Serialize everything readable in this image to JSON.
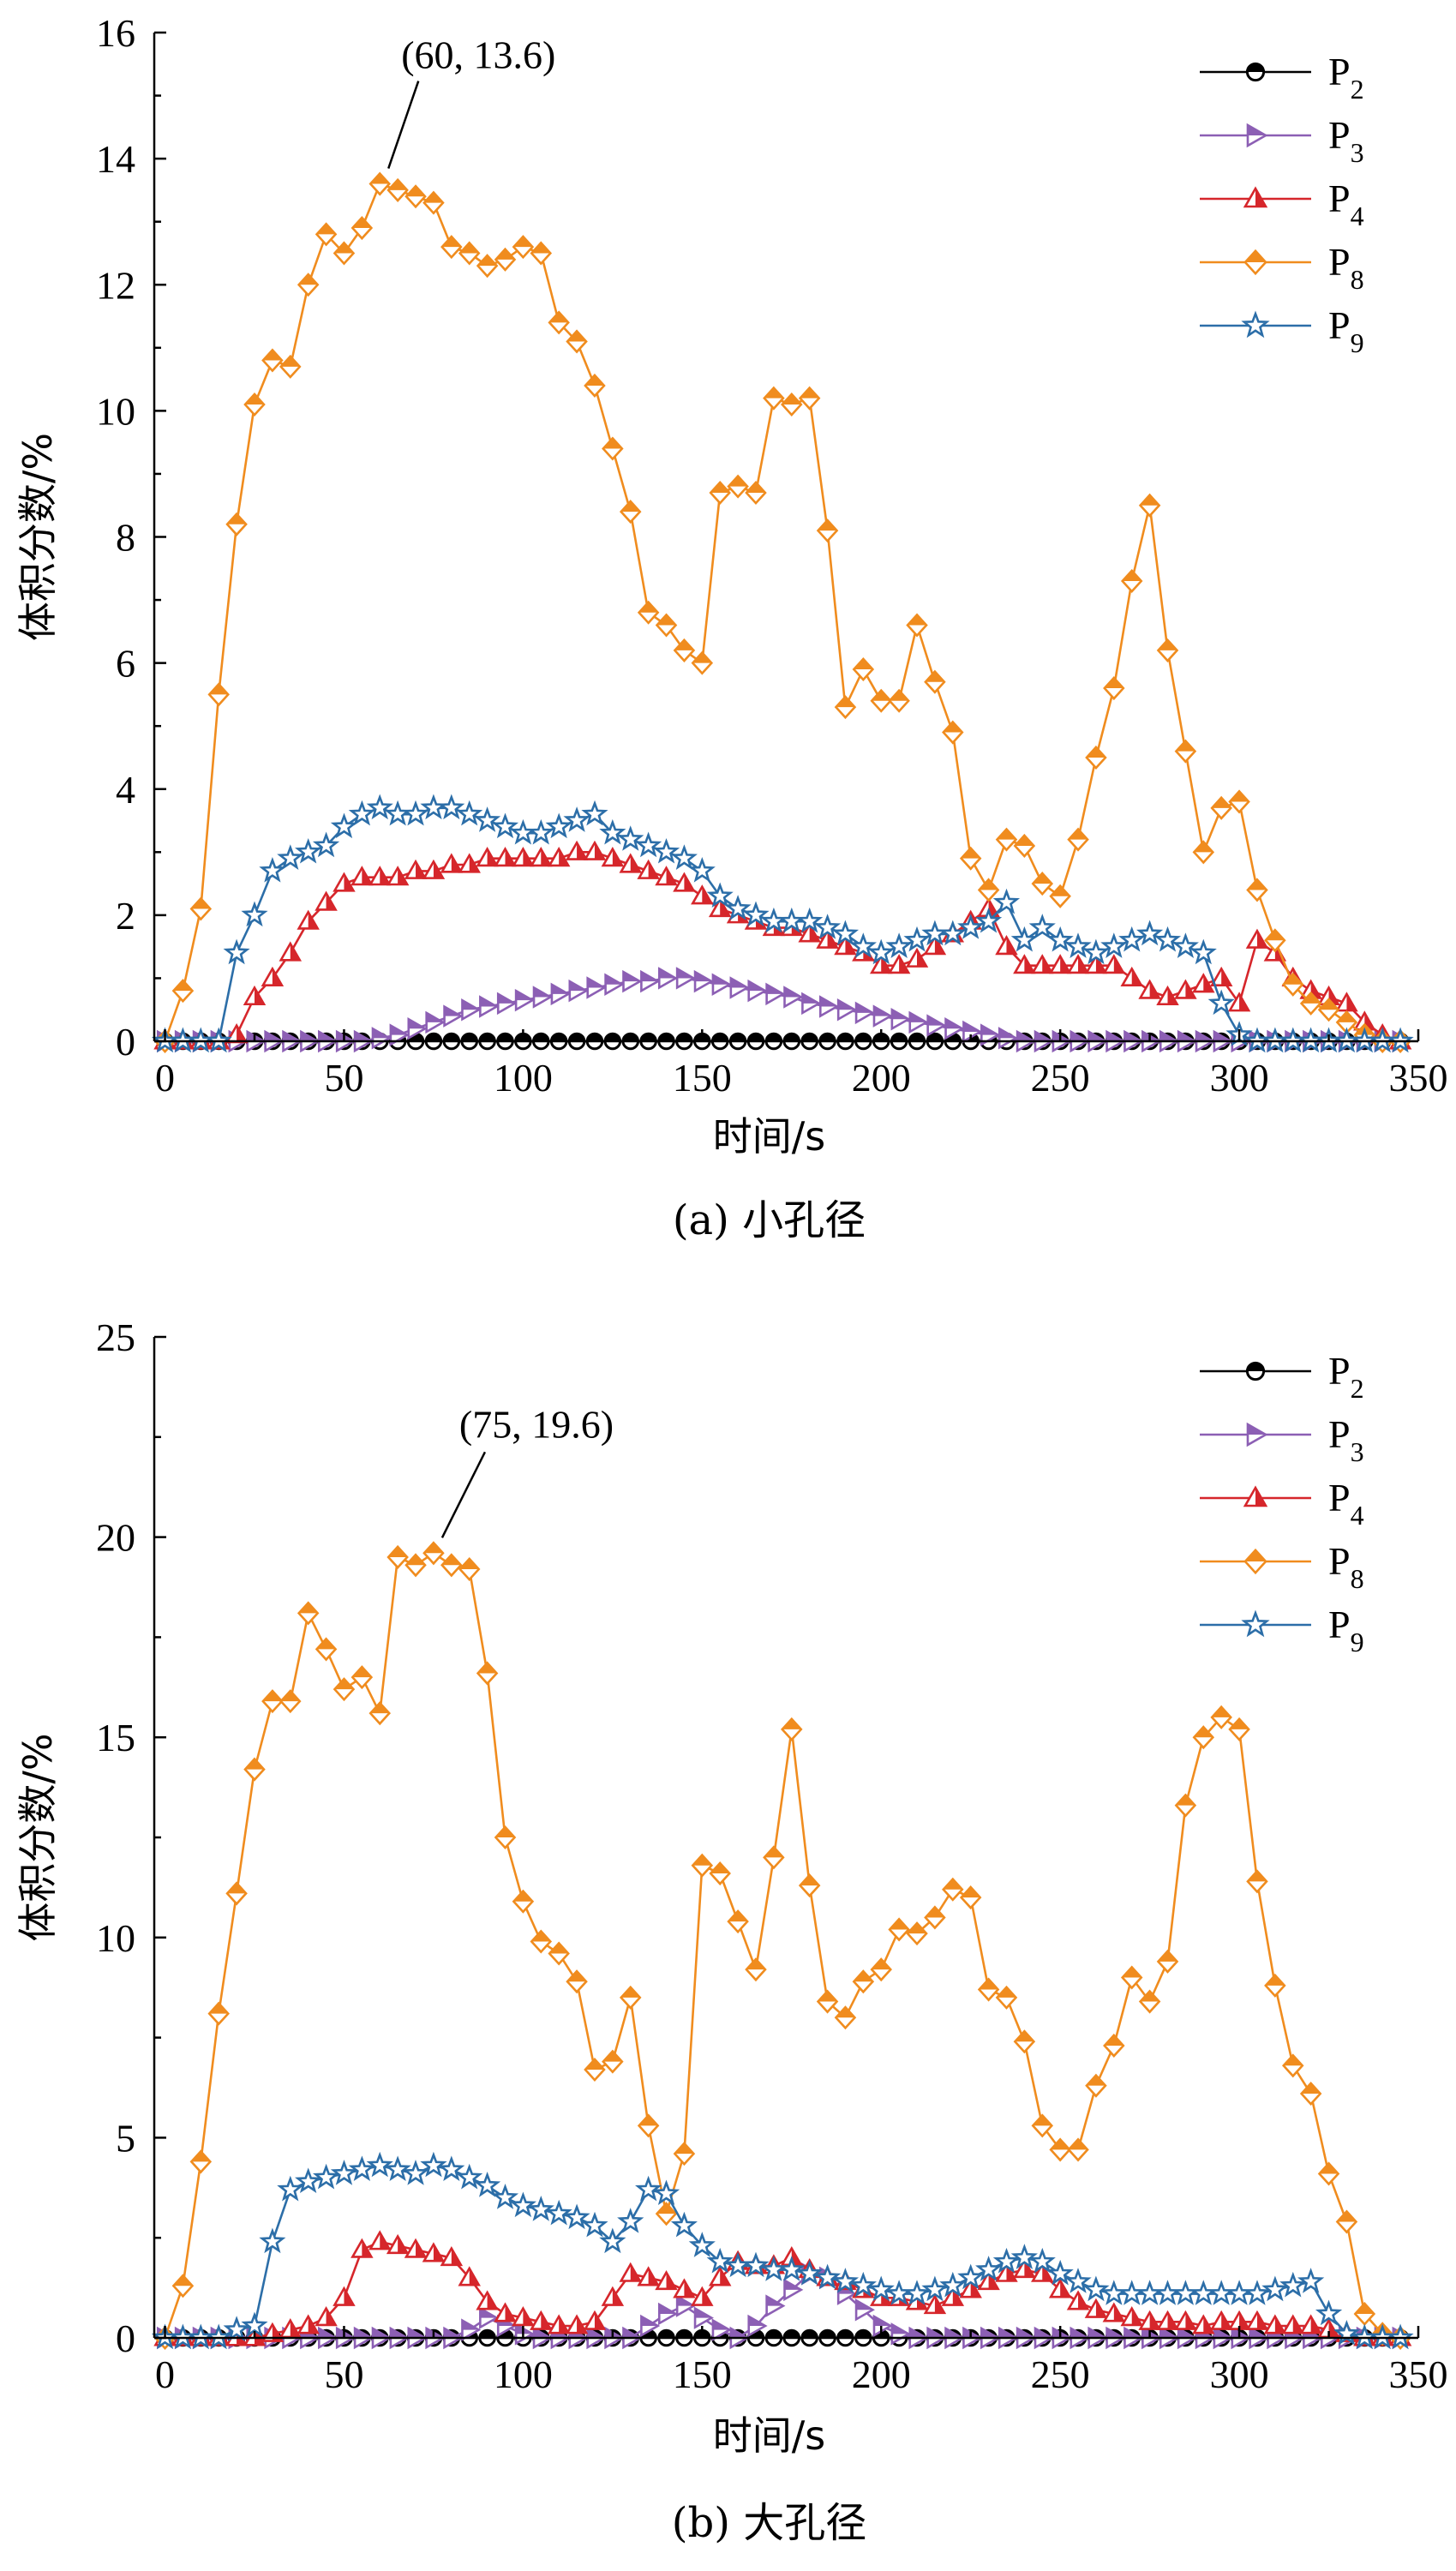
{
  "chart_data": [
    {
      "type": "line",
      "caption": "(a) 小孔径",
      "xlabel": "时间/s",
      "ylabel": "体积分数/%",
      "xlim": [
        -3,
        350
      ],
      "ylim": [
        0,
        16
      ],
      "xticks": [
        0,
        50,
        100,
        150,
        200,
        250,
        300,
        350
      ],
      "yticks": [
        0,
        2,
        4,
        6,
        8,
        10,
        12,
        14,
        16
      ],
      "legend_position": "top-right",
      "annotation": {
        "text": "(60, 13.6)",
        "x": 60,
        "y": 13.6
      },
      "x": [
        0,
        5,
        10,
        15,
        20,
        25,
        30,
        35,
        40,
        45,
        50,
        55,
        60,
        65,
        70,
        75,
        80,
        85,
        90,
        95,
        100,
        105,
        110,
        115,
        120,
        125,
        130,
        135,
        140,
        145,
        150,
        155,
        160,
        165,
        170,
        175,
        180,
        185,
        190,
        195,
        200,
        205,
        210,
        215,
        220,
        225,
        230,
        235,
        240,
        245,
        250,
        255,
        260,
        265,
        270,
        275,
        280,
        285,
        290,
        295,
        300,
        305,
        310,
        315,
        320,
        325,
        330,
        335,
        340,
        345
      ],
      "series": [
        {
          "name": "P2",
          "color": "#000000",
          "marker": "circle",
          "values": [
            0,
            0,
            0,
            0,
            0,
            0,
            0,
            0,
            0,
            0,
            0,
            0,
            0,
            0,
            0,
            0,
            0,
            0,
            0,
            0,
            0,
            0,
            0,
            0,
            0,
            0,
            0,
            0,
            0,
            0,
            0,
            0,
            0,
            0,
            0,
            0,
            0,
            0,
            0,
            0,
            0,
            0,
            0,
            0,
            0,
            0,
            0,
            0,
            0,
            0,
            0,
            0,
            0,
            0,
            0,
            0,
            0,
            0,
            0,
            0,
            0,
            0,
            0,
            0,
            0,
            0,
            0,
            0,
            0,
            0
          ]
        },
        {
          "name": "P3",
          "color": "#8c5fb4",
          "marker": "triangle-right",
          "values": [
            0,
            0,
            0,
            0,
            0,
            0,
            0,
            0,
            0,
            0,
            0,
            0,
            0.05,
            0.1,
            0.2,
            0.3,
            0.4,
            0.5,
            0.55,
            0.6,
            0.65,
            0.7,
            0.75,
            0.8,
            0.85,
            0.9,
            0.95,
            0.95,
            1.0,
            1.0,
            0.95,
            0.9,
            0.85,
            0.8,
            0.75,
            0.7,
            0.6,
            0.55,
            0.5,
            0.45,
            0.4,
            0.35,
            0.3,
            0.25,
            0.2,
            0.15,
            0.1,
            0.05,
            0,
            0,
            0,
            0,
            0,
            0,
            0,
            0,
            0,
            0,
            0,
            0,
            0,
            0,
            0,
            0,
            0,
            0,
            0,
            0,
            0,
            0
          ]
        },
        {
          "name": "P4",
          "color": "#d6262b",
          "marker": "triangle-up",
          "values": [
            0,
            0,
            0,
            0,
            0.1,
            0.7,
            1.0,
            1.4,
            1.9,
            2.2,
            2.5,
            2.6,
            2.6,
            2.6,
            2.7,
            2.7,
            2.8,
            2.8,
            2.9,
            2.9,
            2.9,
            2.9,
            2.9,
            3.0,
            3.0,
            2.9,
            2.8,
            2.7,
            2.6,
            2.5,
            2.3,
            2.1,
            2.0,
            1.9,
            1.8,
            1.8,
            1.7,
            1.6,
            1.5,
            1.4,
            1.2,
            1.2,
            1.3,
            1.5,
            1.7,
            1.9,
            2.1,
            1.5,
            1.2,
            1.2,
            1.2,
            1.2,
            1.2,
            1.2,
            1.0,
            0.8,
            0.7,
            0.8,
            0.9,
            1.0,
            0.6,
            1.6,
            1.4,
            1.0,
            0.8,
            0.7,
            0.6,
            0.3,
            0.1,
            0
          ]
        },
        {
          "name": "P8",
          "color": "#f08c1e",
          "marker": "diamond",
          "values": [
            0,
            0.8,
            2.1,
            5.5,
            8.2,
            10.1,
            10.8,
            10.7,
            12.0,
            12.8,
            12.5,
            12.9,
            13.6,
            13.5,
            13.4,
            13.3,
            12.6,
            12.5,
            12.3,
            12.4,
            12.6,
            12.5,
            11.4,
            11.1,
            10.4,
            9.4,
            8.4,
            6.8,
            6.6,
            6.2,
            6.0,
            8.7,
            8.8,
            8.7,
            10.2,
            10.1,
            10.2,
            8.1,
            5.3,
            5.9,
            5.4,
            5.4,
            6.6,
            5.7,
            4.9,
            2.9,
            2.4,
            3.2,
            3.1,
            2.5,
            2.3,
            3.2,
            4.5,
            5.6,
            7.3,
            8.5,
            6.2,
            4.6,
            3.0,
            3.7,
            3.8,
            2.4,
            1.6,
            0.9,
            0.6,
            0.5,
            0.3,
            0.1,
            0,
            0
          ]
        },
        {
          "name": "P9",
          "color": "#2c6ea8",
          "marker": "star",
          "values": [
            0,
            0,
            0,
            0,
            1.4,
            2.0,
            2.7,
            2.9,
            3.0,
            3.1,
            3.4,
            3.6,
            3.7,
            3.6,
            3.6,
            3.7,
            3.7,
            3.6,
            3.5,
            3.4,
            3.3,
            3.3,
            3.4,
            3.5,
            3.6,
            3.3,
            3.2,
            3.1,
            3.0,
            2.9,
            2.7,
            2.3,
            2.1,
            2.0,
            1.9,
            1.9,
            1.9,
            1.8,
            1.7,
            1.5,
            1.4,
            1.5,
            1.6,
            1.7,
            1.7,
            1.8,
            1.9,
            2.2,
            1.6,
            1.8,
            1.6,
            1.5,
            1.4,
            1.5,
            1.6,
            1.7,
            1.6,
            1.5,
            1.4,
            0.6,
            0.1,
            0,
            0,
            0,
            0,
            0,
            0,
            0,
            0,
            0
          ]
        }
      ]
    },
    {
      "type": "line",
      "caption": "(b) 大孔径",
      "xlabel": "时间/s",
      "ylabel": "体积分数/%",
      "xlim": [
        -3,
        350
      ],
      "ylim": [
        0,
        25
      ],
      "xticks": [
        0,
        50,
        100,
        150,
        200,
        250,
        300,
        350
      ],
      "yticks": [
        0,
        5,
        10,
        15,
        20,
        25
      ],
      "legend_position": "top-right",
      "annotation": {
        "text": "(75, 19.6)",
        "x": 75,
        "y": 19.6
      },
      "x": [
        0,
        5,
        10,
        15,
        20,
        25,
        30,
        35,
        40,
        45,
        50,
        55,
        60,
        65,
        70,
        75,
        80,
        85,
        90,
        95,
        100,
        105,
        110,
        115,
        120,
        125,
        130,
        135,
        140,
        145,
        150,
        155,
        160,
        165,
        170,
        175,
        180,
        185,
        190,
        195,
        200,
        205,
        210,
        215,
        220,
        225,
        230,
        235,
        240,
        245,
        250,
        255,
        260,
        265,
        270,
        275,
        280,
        285,
        290,
        295,
        300,
        305,
        310,
        315,
        320,
        325,
        330,
        335,
        340,
        345
      ],
      "series": [
        {
          "name": "P2",
          "color": "#000000",
          "marker": "circle",
          "values": [
            0,
            0,
            0,
            0,
            0,
            0,
            0,
            0,
            0,
            0,
            0,
            0,
            0,
            0,
            0,
            0,
            0,
            0,
            0,
            0,
            0,
            0,
            0,
            0,
            0,
            0,
            0,
            0,
            0,
            0,
            0,
            0,
            0,
            0,
            0,
            0,
            0,
            0,
            0,
            0,
            0,
            0,
            0,
            0,
            0,
            0,
            0,
            0,
            0,
            0,
            0,
            0,
            0,
            0,
            0,
            0,
            0,
            0,
            0,
            0,
            0,
            0,
            0,
            0,
            0,
            0,
            0,
            0,
            0,
            0
          ]
        },
        {
          "name": "P3",
          "color": "#8c5fb4",
          "marker": "triangle-right",
          "values": [
            0,
            0,
            0,
            0,
            0,
            0,
            0,
            0,
            0,
            0,
            0,
            0,
            0,
            0,
            0,
            0,
            0,
            0.2,
            0.5,
            0.3,
            0.1,
            0,
            0,
            0,
            0,
            0,
            0,
            0.3,
            0.6,
            0.8,
            0.5,
            0.2,
            0,
            0.3,
            0.8,
            1.2,
            1.6,
            1.5,
            1.1,
            0.7,
            0.3,
            0.1,
            0,
            0,
            0,
            0,
            0,
            0,
            0,
            0,
            0,
            0,
            0,
            0,
            0,
            0,
            0,
            0,
            0,
            0,
            0,
            0,
            0,
            0,
            0,
            0,
            0,
            0,
            0,
            0
          ]
        },
        {
          "name": "P4",
          "color": "#d6262b",
          "marker": "triangle-up",
          "values": [
            0,
            0,
            0,
            0,
            0,
            0,
            0.1,
            0.2,
            0.3,
            0.5,
            1.0,
            2.2,
            2.4,
            2.3,
            2.2,
            2.1,
            2.0,
            1.5,
            0.9,
            0.6,
            0.5,
            0.4,
            0.3,
            0.3,
            0.4,
            1.0,
            1.6,
            1.5,
            1.4,
            1.2,
            1.0,
            1.5,
            1.9,
            1.8,
            1.8,
            2.0,
            1.7,
            1.5,
            1.4,
            1.2,
            1.0,
            1.0,
            0.9,
            0.8,
            1.0,
            1.2,
            1.4,
            1.6,
            1.7,
            1.6,
            1.2,
            0.9,
            0.7,
            0.6,
            0.5,
            0.4,
            0.4,
            0.4,
            0.3,
            0.4,
            0.4,
            0.4,
            0.3,
            0.3,
            0.3,
            0.2,
            0.1,
            0,
            0,
            0
          ]
        },
        {
          "name": "P8",
          "color": "#f08c1e",
          "marker": "diamond",
          "values": [
            0,
            1.3,
            4.4,
            8.1,
            11.1,
            14.2,
            15.9,
            15.9,
            18.1,
            17.2,
            16.2,
            16.5,
            15.6,
            19.5,
            19.3,
            19.6,
            19.3,
            19.2,
            16.6,
            12.5,
            10.9,
            9.9,
            9.6,
            8.9,
            6.7,
            6.9,
            8.5,
            5.3,
            3.1,
            4.6,
            11.8,
            11.6,
            10.4,
            9.2,
            12.0,
            15.2,
            11.3,
            8.4,
            8.0,
            8.9,
            9.2,
            10.2,
            10.1,
            10.5,
            11.2,
            11.0,
            8.7,
            8.5,
            7.4,
            5.3,
            4.7,
            4.7,
            6.3,
            7.3,
            9.0,
            8.4,
            9.4,
            13.3,
            15.0,
            15.5,
            15.2,
            11.4,
            8.8,
            6.8,
            6.1,
            4.1,
            2.9,
            0.6,
            0.1,
            0
          ]
        },
        {
          "name": "P9",
          "color": "#2c6ea8",
          "marker": "star",
          "values": [
            0,
            0,
            0,
            0,
            0.2,
            0.3,
            2.4,
            3.7,
            3.9,
            4.0,
            4.1,
            4.2,
            4.3,
            4.2,
            4.1,
            4.3,
            4.2,
            4.0,
            3.8,
            3.5,
            3.3,
            3.2,
            3.1,
            3.0,
            2.8,
            2.4,
            2.9,
            3.7,
            3.6,
            2.8,
            2.3,
            1.9,
            1.8,
            1.8,
            1.7,
            1.7,
            1.6,
            1.5,
            1.4,
            1.3,
            1.2,
            1.1,
            1.1,
            1.2,
            1.3,
            1.5,
            1.7,
            1.9,
            2.0,
            1.9,
            1.6,
            1.4,
            1.2,
            1.1,
            1.1,
            1.1,
            1.1,
            1.1,
            1.1,
            1.1,
            1.1,
            1.1,
            1.2,
            1.3,
            1.4,
            0.6,
            0.1,
            0,
            0,
            0
          ]
        }
      ]
    }
  ]
}
